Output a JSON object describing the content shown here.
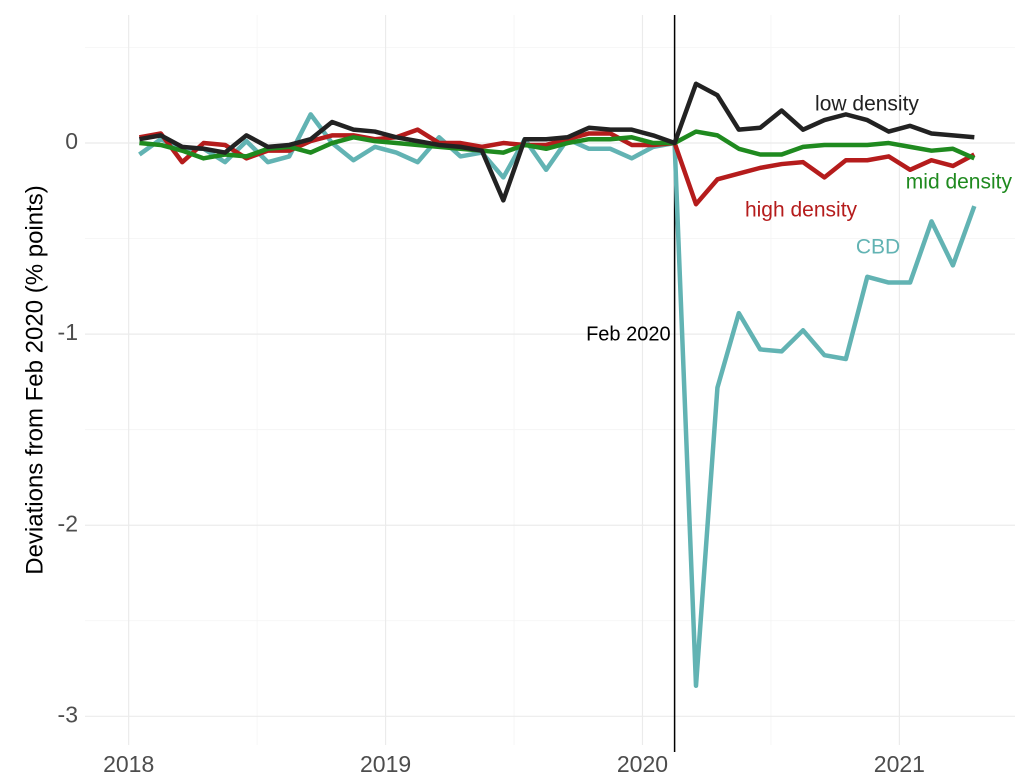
{
  "chart_data": {
    "type": "line",
    "y_label": "Deviations from Feb 2020 (% points)",
    "x": [
      2018.0417,
      2018.125,
      2018.2083,
      2018.2917,
      2018.375,
      2018.4583,
      2018.5417,
      2018.625,
      2018.7083,
      2018.7917,
      2018.875,
      2018.9583,
      2019.0417,
      2019.125,
      2019.2083,
      2019.2917,
      2019.375,
      2019.4583,
      2019.5417,
      2019.625,
      2019.7083,
      2019.7917,
      2019.875,
      2019.9583,
      2020.0417,
      2020.125,
      2020.2083,
      2020.2917,
      2020.375,
      2020.4583,
      2020.5417,
      2020.625,
      2020.7083,
      2020.7917,
      2020.875,
      2020.9583,
      2021.0417,
      2021.125,
      2021.2083,
      2021.2917
    ],
    "series": [
      {
        "name": "low density",
        "color": "#222222",
        "values": [
          0.02,
          0.04,
          -0.02,
          -0.03,
          -0.05,
          0.04,
          -0.02,
          -0.01,
          0.02,
          0.11,
          0.07,
          0.06,
          0.03,
          0.01,
          -0.01,
          -0.02,
          -0.04,
          -0.3,
          0.02,
          0.02,
          0.03,
          0.08,
          0.07,
          0.07,
          0.04,
          0,
          0.31,
          0.25,
          0.07,
          0.08,
          0.17,
          0.07,
          0.12,
          0.15,
          0.12,
          0.06,
          0.09,
          0.05,
          0.04,
          0.03
        ]
      },
      {
        "name": "mid density",
        "color": "#1f8a1f",
        "values": [
          0,
          -0.01,
          -0.04,
          -0.08,
          -0.06,
          -0.07,
          -0.03,
          -0.02,
          -0.05,
          0.0,
          0.03,
          0.01,
          0.0,
          -0.01,
          -0.02,
          -0.03,
          -0.04,
          -0.05,
          -0.01,
          -0.03,
          0.0,
          0.02,
          0.02,
          0.03,
          0.0,
          0,
          0.06,
          0.04,
          -0.03,
          -0.06,
          -0.06,
          -0.02,
          -0.01,
          -0.01,
          -0.01,
          0.0,
          -0.02,
          -0.04,
          -0.03,
          -0.08
        ]
      },
      {
        "name": "high density",
        "color": "#b51c1c",
        "values": [
          0.03,
          0.05,
          -0.1,
          0.0,
          -0.01,
          -0.08,
          -0.04,
          -0.04,
          0.01,
          0.04,
          0.04,
          0.02,
          0.03,
          0.07,
          0.0,
          0.0,
          -0.02,
          0.0,
          -0.01,
          -0.01,
          0.02,
          0.05,
          0.05,
          -0.01,
          -0.01,
          0,
          -0.32,
          -0.19,
          -0.16,
          -0.13,
          -0.11,
          -0.1,
          -0.18,
          -0.09,
          -0.09,
          -0.07,
          -0.14,
          -0.09,
          -0.12,
          -0.06
        ]
      },
      {
        "name": "CBD",
        "color": "#62b3b3",
        "values": [
          -0.06,
          0.02,
          -0.03,
          -0.03,
          -0.1,
          0.01,
          -0.1,
          -0.07,
          0.15,
          0.0,
          -0.09,
          -0.02,
          -0.05,
          -0.1,
          0.03,
          -0.07,
          -0.05,
          -0.18,
          0.02,
          -0.14,
          0.02,
          -0.03,
          -0.03,
          -0.08,
          -0.02,
          0,
          -2.84,
          -1.28,
          -0.89,
          -1.08,
          -1.09,
          -0.98,
          -1.11,
          -1.13,
          -0.7,
          -0.73,
          -0.73,
          -0.41,
          -0.64,
          -0.33
        ]
      }
    ],
    "xlim": [
      2017.83,
      2021.45
    ],
    "xticks": [
      2018,
      2019,
      2020,
      2021
    ],
    "minor_xticks": [
      2018.5,
      2019.5,
      2020.5
    ],
    "ylim": [
      -3.15,
      0.67
    ],
    "yticks": [
      0,
      -1,
      -2,
      -3
    ],
    "minor_yticks": [
      0.5,
      -0.5,
      -1.5,
      -2.5
    ],
    "grid": true,
    "vline": {
      "x": 2020.125,
      "label": "Feb 2020"
    }
  }
}
